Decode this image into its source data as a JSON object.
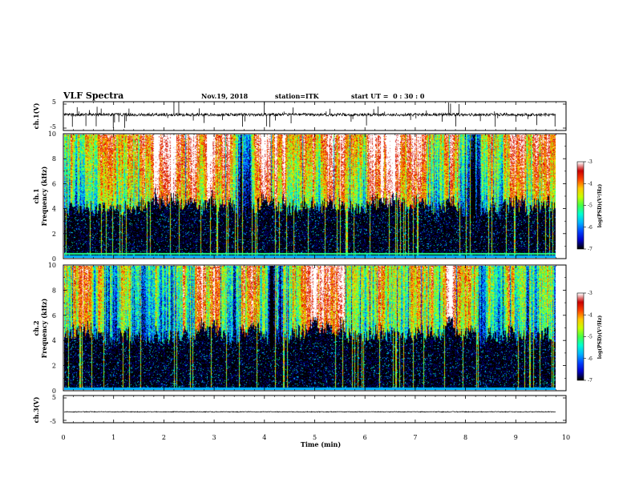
{
  "chart_data": {
    "type": "heatmap",
    "header": {
      "title": "VLF Spectra",
      "date": "Nov.19, 2018",
      "station": "station=ITK",
      "start_ut": "start UT =  0 : 30 : 0"
    },
    "xlabel": "Time (min)",
    "xlim": [
      0,
      10
    ],
    "xticks": [
      "0",
      "1",
      "2",
      "3",
      "4",
      "5",
      "6",
      "7",
      "8",
      "9",
      "10"
    ],
    "panels": [
      {
        "id": "ch1-waveform",
        "type": "line",
        "ylabel": "ch.1(V)",
        "ylim": [
          -5,
          5
        ],
        "yticks": [
          "5",
          "-5"
        ],
        "baseline_v": 0.5
      },
      {
        "id": "ch1-spectrogram",
        "type": "heatmap",
        "ylabel_top": "ch.1",
        "ylabel": "Frequency (kHz)",
        "ylim": [
          0,
          10
        ],
        "yticks": [
          "0",
          "2",
          "4",
          "6",
          "8",
          "10"
        ],
        "colorbar": {
          "label": "log(PSD)(V²/Hz)",
          "range": [
            -7,
            -3
          ],
          "ticks": [
            "-3",
            "-4",
            "-5",
            "-6",
            "-7"
          ]
        }
      },
      {
        "id": "ch2-spectrogram",
        "type": "heatmap",
        "ylabel_top": "ch.2",
        "ylabel": "Frequency (kHz)",
        "ylim": [
          0,
          10
        ],
        "yticks": [
          "0",
          "2",
          "4",
          "6",
          "8",
          "10"
        ],
        "colorbar": {
          "label": "log(PSD)(V²/Hz)",
          "range": [
            -7,
            -3
          ],
          "ticks": [
            "-3",
            "-4",
            "-5",
            "-6",
            "-7"
          ]
        }
      },
      {
        "id": "ch3-waveform",
        "type": "line",
        "ylabel": "ch.3(V)",
        "ylim": [
          -5,
          5
        ],
        "yticks": [
          "5",
          "-5"
        ],
        "baseline_v": -1.0
      }
    ],
    "colormap": [
      "#000000",
      "#0000c8",
      "#0046ff",
      "#00b4ff",
      "#00ffd2",
      "#46ff46",
      "#c8ff00",
      "#ffc800",
      "#ff4600",
      "#c80000",
      "#ffffff"
    ],
    "data_coverage_min": 9.8
  }
}
